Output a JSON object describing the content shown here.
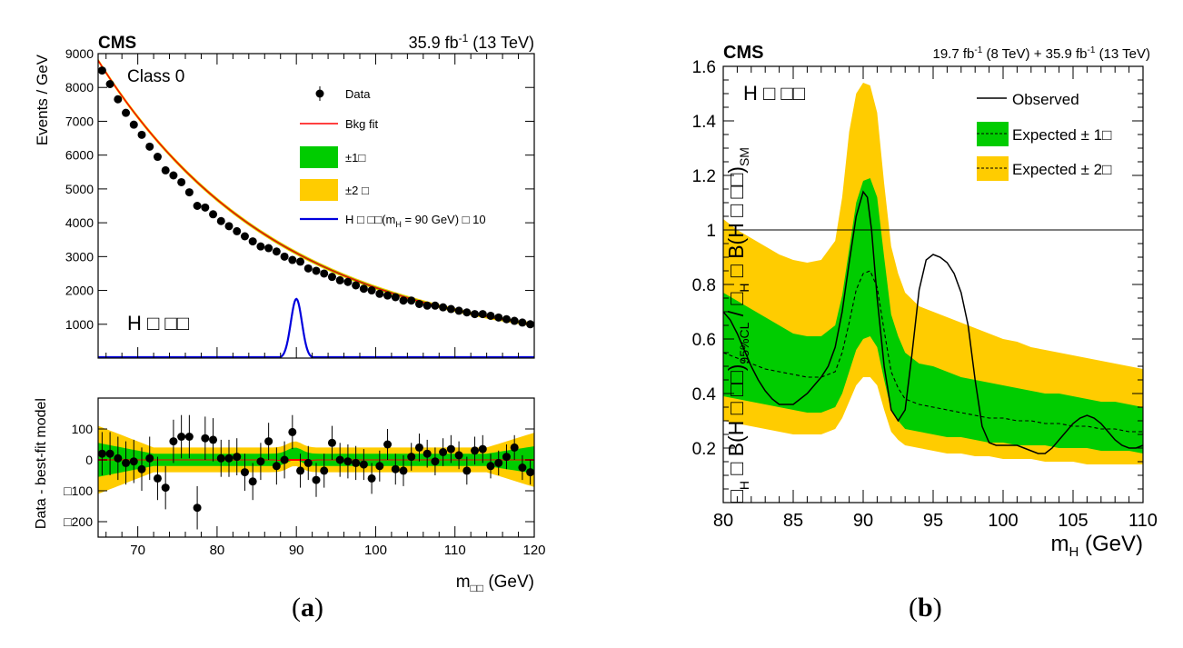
{
  "figure": {
    "caption_a_open": "(",
    "caption_a_letter": "a",
    "caption_a_close": ")",
    "caption_b_open": "(",
    "caption_b_letter": "b",
    "caption_b_close": ")"
  },
  "colors": {
    "band_1sigma": "#00cc00",
    "band_2sigma": "#ffcc00",
    "bkg_fit": "#ff0000",
    "signal": "#0000dd",
    "data": "#000000"
  },
  "chart_data": [
    {
      "type": "scatter",
      "panel": "a-top",
      "experiment_label": "CMS",
      "lumi_value": "35.9 fb",
      "lumi_exp": "-1",
      "lumi_energy": " (13 TeV)",
      "class_label": "Class 0",
      "channel_label": "H □ □□",
      "ylabel": "Events / GeV",
      "xlim": [
        65,
        120
      ],
      "ylim": [
        0,
        9000
      ],
      "yticks": [
        1000,
        2000,
        3000,
        4000,
        5000,
        6000,
        7000,
        8000,
        9000
      ],
      "legend": {
        "data": "Data",
        "bkg": "Bkg fit",
        "one_sigma": "±1□",
        "two_sigma": "±2 □",
        "signal": "H □ □□(m",
        "signal_sub": "H",
        "signal_rest": " = 90 GeV) □ 10"
      },
      "bkg_model": {
        "A": 8600,
        "x0": 65,
        "k": 0.0434,
        "floor": 200
      },
      "signal_model": {
        "mass": 90,
        "peak": 1750,
        "sigma": 0.7
      },
      "data_x": [
        65.5,
        66.5,
        67.5,
        68.5,
        69.5,
        70.5,
        71.5,
        72.5,
        73.5,
        74.5,
        75.5,
        76.5,
        77.5,
        78.5,
        79.5,
        80.5,
        81.5,
        82.5,
        83.5,
        84.5,
        85.5,
        86.5,
        87.5,
        88.5,
        89.5,
        90.5,
        91.5,
        92.5,
        93.5,
        94.5,
        95.5,
        96.5,
        97.5,
        98.5,
        99.5,
        100.5,
        101.5,
        102.5,
        103.5,
        104.5,
        105.5,
        106.5,
        107.5,
        108.5,
        109.5,
        110.5,
        111.5,
        112.5,
        113.5,
        114.5,
        115.5,
        116.5,
        117.5,
        118.5,
        119.5
      ],
      "data_y": [
        8500,
        8100,
        7650,
        7250,
        6900,
        6600,
        6250,
        5950,
        5550,
        5400,
        5200,
        4900,
        4500,
        4450,
        4250,
        4050,
        3900,
        3750,
        3600,
        3450,
        3300,
        3250,
        3150,
        3000,
        2900,
        2850,
        2650,
        2580,
        2500,
        2400,
        2300,
        2250,
        2150,
        2050,
        2000,
        1900,
        1850,
        1800,
        1700,
        1700,
        1600,
        1550,
        1550,
        1500,
        1450,
        1400,
        1350,
        1300,
        1300,
        1250,
        1200,
        1150,
        1100,
        1050,
        1000
      ]
    },
    {
      "type": "scatter",
      "panel": "a-bottom",
      "ylabel": "Data - best-fit model",
      "xlabel_m": "m",
      "xlabel_sub": "□□",
      "xlabel_unit": " (GeV)",
      "xlim": [
        65,
        120
      ],
      "ylim": [
        -250,
        200
      ],
      "yticks": [
        100,
        0,
        -100,
        -200
      ],
      "ytick_labels": [
        "100",
        "0",
        "□100",
        "□200"
      ],
      "xticks": [
        70,
        80,
        90,
        100,
        110,
        120
      ],
      "data_x": [
        65.5,
        66.5,
        67.5,
        68.5,
        69.5,
        70.5,
        71.5,
        72.5,
        73.5,
        74.5,
        75.5,
        76.5,
        77.5,
        78.5,
        79.5,
        80.5,
        81.5,
        82.5,
        83.5,
        84.5,
        85.5,
        86.5,
        87.5,
        88.5,
        89.5,
        90.5,
        91.5,
        92.5,
        93.5,
        94.5,
        95.5,
        96.5,
        97.5,
        98.5,
        99.5,
        100.5,
        101.5,
        102.5,
        103.5,
        104.5,
        105.5,
        106.5,
        107.5,
        108.5,
        109.5,
        110.5,
        111.5,
        112.5,
        113.5,
        114.5,
        115.5,
        116.5,
        117.5,
        118.5,
        119.5
      ],
      "data_y": [
        20,
        20,
        5,
        -10,
        -5,
        -30,
        5,
        -60,
        -90,
        60,
        75,
        75,
        -155,
        70,
        65,
        5,
        5,
        10,
        -40,
        -70,
        -5,
        60,
        -20,
        0,
        90,
        -35,
        -10,
        -65,
        -35,
        55,
        0,
        -5,
        -10,
        -15,
        -60,
        -20,
        50,
        -30,
        -35,
        10,
        40,
        20,
        -5,
        25,
        35,
        15,
        -35,
        30,
        35,
        -20,
        -10,
        10,
        40,
        -25,
        -40
      ],
      "err": [
        70,
        70,
        70,
        70,
        70,
        70,
        70,
        70,
        70,
        70,
        70,
        70,
        70,
        70,
        70,
        60,
        60,
        60,
        60,
        60,
        60,
        60,
        60,
        60,
        55,
        55,
        55,
        55,
        55,
        55,
        55,
        55,
        55,
        50,
        50,
        50,
        50,
        50,
        50,
        45,
        45,
        45,
        45,
        45,
        45,
        45,
        45,
        45,
        45,
        40,
        40,
        40,
        40,
        40,
        40
      ]
    },
    {
      "type": "line",
      "panel": "b",
      "experiment_label": "CMS",
      "lumi_a": "19.7 fb",
      "lumi_a_exp": "-1",
      "lumi_a_rest": " (8 TeV) + 35.9 fb",
      "lumi_b_exp": "-1",
      "lumi_b_rest": " (13 TeV)",
      "channel_label": "H □  □□",
      "ylabel": "□H □ B(H □  □□)95%CL / □H □ B(H □  □□)SM",
      "ylabel_parts": {
        "p1": "□",
        "p1_sub": "H",
        "p2": " □ B(H □  □□)",
        "p2_sub": "95%CL",
        "p3": " / □",
        "p3_sub": "H",
        "p4": " □ B(H □  □□)",
        "p4_sub": "SM"
      },
      "xlabel_m": "m",
      "xlabel_sub": "H",
      "xlabel_unit": " (GeV)",
      "xlim": [
        80,
        110
      ],
      "ylim": [
        0.0,
        1.6
      ],
      "yticks": [
        0.2,
        0.4,
        0.6,
        0.8,
        1,
        1.2,
        1.4,
        1.6
      ],
      "xticks": [
        80,
        85,
        90,
        95,
        100,
        105,
        110
      ],
      "reference_line": 1.0,
      "legend": {
        "observed": "Observed",
        "exp1": "Expected ± 1□",
        "exp2": "Expected ± 2□"
      },
      "x": [
        80,
        81,
        82,
        83,
        84,
        85,
        86,
        87,
        88,
        88.5,
        89,
        89.5,
        90,
        90.5,
        91,
        91.5,
        92,
        92.5,
        93,
        94,
        95,
        96,
        97,
        98,
        99,
        100,
        101,
        102,
        103,
        104,
        105,
        106,
        107,
        108,
        109,
        110
      ],
      "expected": [
        0.55,
        0.53,
        0.51,
        0.49,
        0.48,
        0.47,
        0.46,
        0.46,
        0.48,
        0.55,
        0.66,
        0.78,
        0.84,
        0.85,
        0.79,
        0.63,
        0.48,
        0.42,
        0.38,
        0.36,
        0.35,
        0.34,
        0.33,
        0.32,
        0.31,
        0.31,
        0.3,
        0.3,
        0.29,
        0.29,
        0.28,
        0.28,
        0.27,
        0.27,
        0.26,
        0.26
      ],
      "plus1": [
        0.77,
        0.74,
        0.71,
        0.68,
        0.65,
        0.62,
        0.61,
        0.61,
        0.65,
        0.76,
        0.93,
        1.1,
        1.18,
        1.19,
        1.12,
        0.9,
        0.69,
        0.61,
        0.55,
        0.51,
        0.5,
        0.48,
        0.46,
        0.45,
        0.44,
        0.43,
        0.42,
        0.41,
        0.4,
        0.4,
        0.39,
        0.38,
        0.37,
        0.37,
        0.36,
        0.35
      ],
      "minus1": [
        0.39,
        0.38,
        0.37,
        0.36,
        0.35,
        0.34,
        0.33,
        0.33,
        0.35,
        0.4,
        0.48,
        0.56,
        0.6,
        0.61,
        0.57,
        0.45,
        0.34,
        0.3,
        0.27,
        0.26,
        0.25,
        0.24,
        0.24,
        0.23,
        0.22,
        0.22,
        0.21,
        0.21,
        0.21,
        0.2,
        0.2,
        0.2,
        0.19,
        0.19,
        0.19,
        0.18
      ],
      "plus2": [
        1.04,
        1.0,
        0.97,
        0.94,
        0.91,
        0.89,
        0.88,
        0.89,
        0.96,
        1.12,
        1.36,
        1.5,
        1.54,
        1.53,
        1.43,
        1.17,
        0.94,
        0.84,
        0.77,
        0.72,
        0.7,
        0.68,
        0.66,
        0.64,
        0.62,
        0.6,
        0.59,
        0.57,
        0.56,
        0.55,
        0.54,
        0.53,
        0.52,
        0.51,
        0.5,
        0.49
      ],
      "minus2": [
        0.3,
        0.29,
        0.28,
        0.27,
        0.26,
        0.25,
        0.25,
        0.25,
        0.27,
        0.31,
        0.37,
        0.43,
        0.46,
        0.46,
        0.43,
        0.34,
        0.26,
        0.23,
        0.21,
        0.2,
        0.19,
        0.18,
        0.18,
        0.17,
        0.17,
        0.16,
        0.16,
        0.16,
        0.15,
        0.15,
        0.15,
        0.14,
        0.14,
        0.14,
        0.14,
        0.14
      ],
      "observed_x": [
        80,
        80.5,
        81,
        81.5,
        82,
        82.5,
        83,
        83.5,
        84,
        84.5,
        85,
        85.5,
        86,
        86.5,
        87,
        87.5,
        88,
        88.5,
        89,
        89.5,
        90,
        90.3,
        90.6,
        91,
        91.5,
        92,
        92.5,
        93,
        93.5,
        94,
        94.5,
        95,
        95.5,
        96,
        96.5,
        97,
        97.5,
        98,
        98.5,
        99,
        99.5,
        100,
        100.5,
        101,
        101.5,
        102,
        102.5,
        103,
        103.5,
        104,
        104.5,
        105,
        105.5,
        106,
        106.5,
        107,
        107.5,
        108,
        108.5,
        109,
        109.5,
        110
      ],
      "observed": [
        0.7,
        0.67,
        0.62,
        0.56,
        0.5,
        0.45,
        0.41,
        0.38,
        0.36,
        0.36,
        0.36,
        0.38,
        0.4,
        0.43,
        0.46,
        0.5,
        0.57,
        0.7,
        0.88,
        1.05,
        1.14,
        1.12,
        1.0,
        0.75,
        0.5,
        0.34,
        0.3,
        0.34,
        0.55,
        0.78,
        0.89,
        0.91,
        0.9,
        0.88,
        0.84,
        0.77,
        0.65,
        0.45,
        0.28,
        0.22,
        0.21,
        0.21,
        0.21,
        0.21,
        0.2,
        0.19,
        0.18,
        0.18,
        0.2,
        0.23,
        0.26,
        0.29,
        0.31,
        0.32,
        0.31,
        0.29,
        0.26,
        0.23,
        0.21,
        0.2,
        0.2,
        0.21
      ]
    }
  ]
}
